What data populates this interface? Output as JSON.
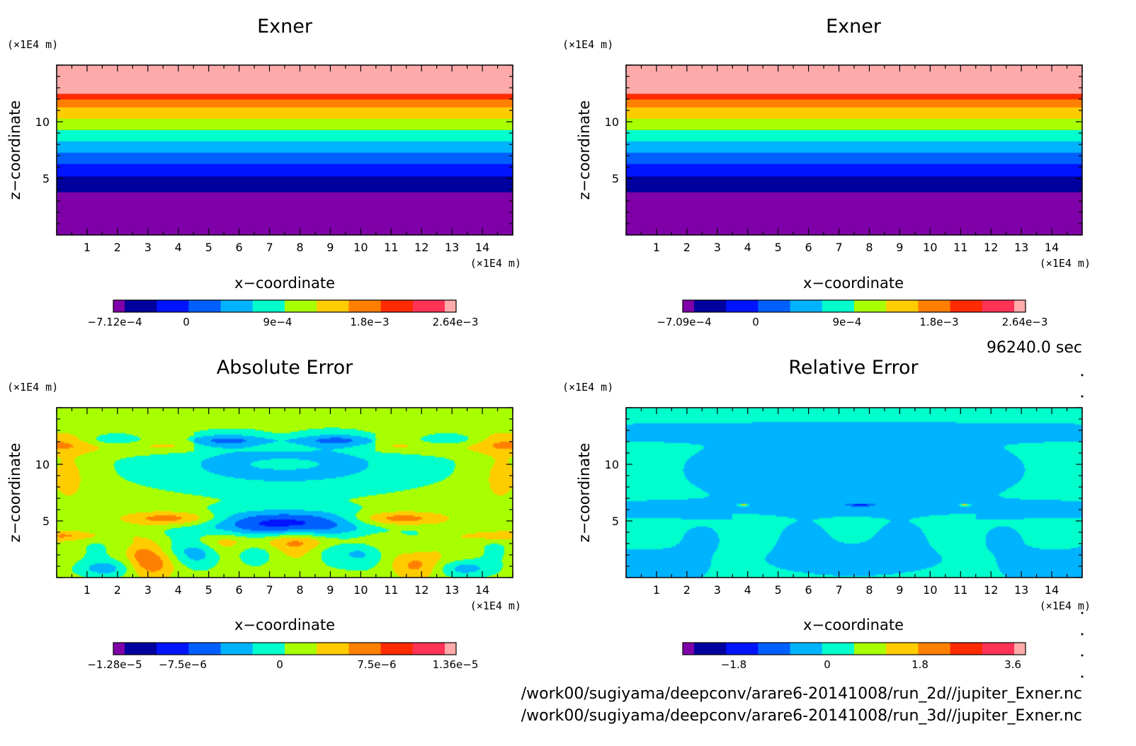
{
  "colors": {
    "levels": [
      "#7f00a8",
      "#00009e",
      "#0014ff",
      "#0060ff",
      "#00b3ff",
      "#00ffcc",
      "#a8ff00",
      "#ffcc00",
      "#ff8000",
      "#ff2b00",
      "#ff3355",
      "#ffaaaa"
    ]
  },
  "footer": {
    "time": "96240.0 sec",
    "file1": "/work00/sugiyama/deepconv/arare6-20141008/run_2d//jupiter_Exner.nc",
    "file2": "/work00/sugiyama/deepconv/arare6-20141008/run_3d//jupiter_Exner.nc"
  },
  "chart_data": [
    {
      "type": "heatmap",
      "title": "Exner",
      "xlabel": "x−coordinate",
      "ylabel": "z−coordinate",
      "x_unit": "(×1E4 m)",
      "y_unit": "(×1E4 m)",
      "xlim": [
        0,
        15
      ],
      "ylim": [
        0,
        15
      ],
      "xticks": [
        "1",
        "2",
        "3",
        "4",
        "5",
        "6",
        "7",
        "8",
        "9",
        "10",
        "11",
        "12",
        "13",
        "14"
      ],
      "yticks": [
        "5",
        "10"
      ],
      "field": "horizontal layers",
      "band_boundaries_z": [
        3.8,
        5.2,
        6.3,
        7.3,
        8.3,
        9.3,
        10.3,
        11.3,
        12.0,
        12.5
      ],
      "band_levels_bottom_to_top": [
        0,
        1,
        2,
        3,
        4,
        5,
        6,
        7,
        8,
        9,
        11
      ],
      "colorbar_labels": [
        "−7.12e−4",
        "0",
        "9e−4",
        "1.8e−3",
        "2.64e−3"
      ]
    },
    {
      "type": "heatmap",
      "title": "Exner",
      "xlabel": "x−coordinate",
      "ylabel": "z−coordinate",
      "x_unit": "(×1E4 m)",
      "y_unit": "(×1E4 m)",
      "xlim": [
        0,
        15
      ],
      "ylim": [
        0,
        15
      ],
      "xticks": [
        "1",
        "2",
        "3",
        "4",
        "5",
        "6",
        "7",
        "8",
        "9",
        "10",
        "11",
        "12",
        "13",
        "14"
      ],
      "yticks": [
        "5",
        "10"
      ],
      "field": "horizontal layers",
      "band_boundaries_z": [
        3.8,
        5.2,
        6.3,
        7.3,
        8.3,
        9.3,
        10.3,
        11.3,
        12.0,
        12.5
      ],
      "band_levels_bottom_to_top": [
        0,
        1,
        2,
        3,
        4,
        5,
        6,
        7,
        8,
        9,
        11
      ],
      "colorbar_labels": [
        "−7.09e−4",
        "0",
        "9e−4",
        "1.8e−3",
        "2.64e−3"
      ]
    },
    {
      "type": "heatmap",
      "title": "Absolute Error",
      "xlabel": "x−coordinate",
      "ylabel": "z−coordinate",
      "x_unit": "(×1E4 m)",
      "y_unit": "(×1E4 m)",
      "xlim": [
        0,
        15
      ],
      "ylim": [
        0,
        15
      ],
      "xticks": [
        "1",
        "2",
        "3",
        "4",
        "5",
        "6",
        "7",
        "8",
        "9",
        "10",
        "11",
        "12",
        "13",
        "14"
      ],
      "yticks": [
        "5",
        "10"
      ],
      "field": "absolute error pattern",
      "colorbar_labels": [
        "−1.28e−5",
        "−7.5e−6",
        "0",
        "7.5e−6",
        "1.36e−5"
      ]
    },
    {
      "type": "heatmap",
      "title": "Relative Error",
      "xlabel": "x−coordinate",
      "ylabel": "z−coordinate",
      "x_unit": "(×1E4 m)",
      "y_unit": "(×1E4 m)",
      "xlim": [
        0,
        15
      ],
      "ylim": [
        0,
        15
      ],
      "xticks": [
        "1",
        "2",
        "3",
        "4",
        "5",
        "6",
        "7",
        "8",
        "9",
        "10",
        "11",
        "12",
        "13",
        "14"
      ],
      "yticks": [
        "5",
        "10"
      ],
      "field": "relative error pattern",
      "colorbar_labels": [
        "−1.8",
        "0",
        "1.8",
        "3.6"
      ]
    }
  ]
}
